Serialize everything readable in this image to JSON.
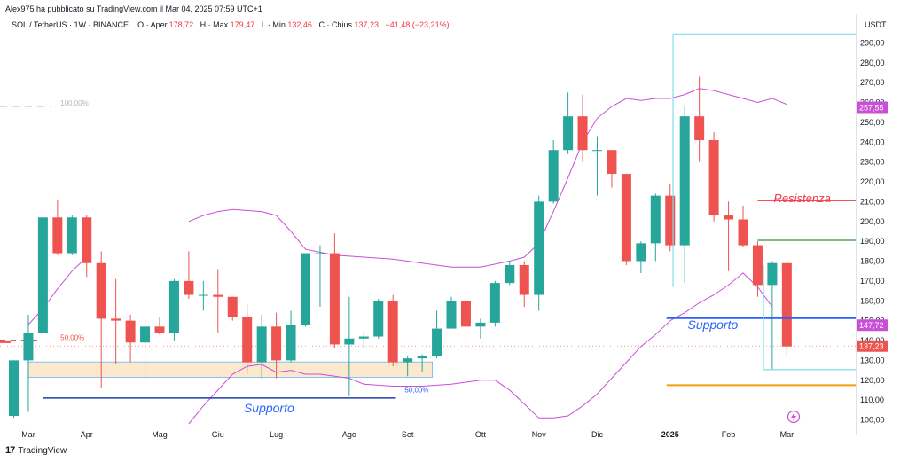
{
  "header": {
    "published": "Alex975 ha pubblicato su TradingView.com il Mar 04, 2025 07:59 UTC+1",
    "symbol": "SOL / TetherUS · 1W · BINANCE",
    "open_label": "O",
    "open_word": "Aper.",
    "open_value": "178,72",
    "high_label": "H",
    "high_word": "Max.",
    "high_value": "179,47",
    "low_label": "L",
    "low_word": "Min.",
    "low_value": "132,46",
    "close_label": "C",
    "close_word": "Chius.",
    "close_value": "137,23",
    "change": "−41,48 (−23,21%)"
  },
  "footer": {
    "brand": "TradingView"
  },
  "colors": {
    "up": "#26a69a",
    "down": "#ef5350",
    "band": "#c94fd6",
    "support": "#2962ff",
    "resistance": "#f23645"
  },
  "chart_data": {
    "type": "candlestick",
    "currency": "USDT",
    "ylim": [
      95,
      300
    ],
    "y_ticks": [
      "100,00",
      "110,00",
      "120,00",
      "130,00",
      "140,00",
      "150,00",
      "160,00",
      "170,00",
      "180,00",
      "190,00",
      "200,00",
      "210,00",
      "220,00",
      "230,00",
      "240,00",
      "250,00",
      "260,00",
      "270,00",
      "280,00",
      "290,00"
    ],
    "x_labels": [
      {
        "i": 1,
        "t": "Mar"
      },
      {
        "i": 5,
        "t": "Apr"
      },
      {
        "i": 10,
        "t": "Mag"
      },
      {
        "i": 14,
        "t": "Giu"
      },
      {
        "i": 18,
        "t": "Lug"
      },
      {
        "i": 23,
        "t": "Ago"
      },
      {
        "i": 27,
        "t": "Set"
      },
      {
        "i": 32,
        "t": "Ott"
      },
      {
        "i": 36,
        "t": "Nov"
      },
      {
        "i": 40,
        "t": "Dic"
      },
      {
        "i": 45,
        "t": "2025"
      },
      {
        "i": 49,
        "t": "Feb"
      },
      {
        "i": 53,
        "t": "Mar"
      }
    ],
    "candles": [
      {
        "o": 102,
        "h": 130,
        "l": 101,
        "c": 130
      },
      {
        "o": 130,
        "h": 153,
        "l": 104,
        "c": 144
      },
      {
        "o": 144,
        "h": 203,
        "l": 143,
        "c": 202
      },
      {
        "o": 202,
        "h": 211,
        "l": 183,
        "c": 184
      },
      {
        "o": 184,
        "h": 203,
        "l": 183,
        "c": 202
      },
      {
        "o": 202,
        "h": 203,
        "l": 172,
        "c": 179
      },
      {
        "o": 179,
        "h": 185,
        "l": 116,
        "c": 151
      },
      {
        "o": 151,
        "h": 171,
        "l": 128,
        "c": 150
      },
      {
        "o": 150,
        "h": 153,
        "l": 129,
        "c": 139
      },
      {
        "o": 139,
        "h": 150,
        "l": 119,
        "c": 147
      },
      {
        "o": 147,
        "h": 152,
        "l": 143,
        "c": 144
      },
      {
        "o": 144,
        "h": 171,
        "l": 140,
        "c": 170
      },
      {
        "o": 170,
        "h": 185,
        "l": 161,
        "c": 163
      },
      {
        "o": 163,
        "h": 170,
        "l": 155,
        "c": 163
      },
      {
        "o": 163,
        "h": 176,
        "l": 144,
        "c": 162
      },
      {
        "o": 162,
        "h": 162,
        "l": 150,
        "c": 152
      },
      {
        "o": 152,
        "h": 158,
        "l": 123,
        "c": 129
      },
      {
        "o": 129,
        "h": 153,
        "l": 121,
        "c": 147
      },
      {
        "o": 147,
        "h": 154,
        "l": 121,
        "c": 130
      },
      {
        "o": 130,
        "h": 155,
        "l": 129,
        "c": 148
      },
      {
        "o": 148,
        "h": 184,
        "l": 147,
        "c": 184
      },
      {
        "o": 184,
        "h": 188,
        "l": 157,
        "c": 184
      },
      {
        "o": 184,
        "h": 194,
        "l": 136,
        "c": 138
      },
      {
        "o": 138,
        "h": 162,
        "l": 112,
        "c": 141
      },
      {
        "o": 141,
        "h": 144,
        "l": 136,
        "c": 142
      },
      {
        "o": 142,
        "h": 161,
        "l": 141,
        "c": 160
      },
      {
        "o": 160,
        "h": 163,
        "l": 127,
        "c": 129
      },
      {
        "o": 129,
        "h": 132,
        "l": 122,
        "c": 131
      },
      {
        "o": 131,
        "h": 133,
        "l": 124,
        "c": 132
      },
      {
        "o": 132,
        "h": 155,
        "l": 131,
        "c": 146
      },
      {
        "o": 146,
        "h": 162,
        "l": 146,
        "c": 160
      },
      {
        "o": 160,
        "h": 161,
        "l": 139,
        "c": 147
      },
      {
        "o": 147,
        "h": 151,
        "l": 141,
        "c": 149
      },
      {
        "o": 149,
        "h": 170,
        "l": 147,
        "c": 169
      },
      {
        "o": 169,
        "h": 180,
        "l": 168,
        "c": 178
      },
      {
        "o": 178,
        "h": 180,
        "l": 157,
        "c": 163
      },
      {
        "o": 163,
        "h": 213,
        "l": 155,
        "c": 210
      },
      {
        "o": 210,
        "h": 241,
        "l": 209,
        "c": 236
      },
      {
        "o": 236,
        "h": 265,
        "l": 234,
        "c": 253
      },
      {
        "o": 253,
        "h": 264,
        "l": 230,
        "c": 236
      },
      {
        "o": 236,
        "h": 243,
        "l": 213,
        "c": 236
      },
      {
        "o": 236,
        "h": 236,
        "l": 217,
        "c": 224
      },
      {
        "o": 224,
        "h": 224,
        "l": 178,
        "c": 180
      },
      {
        "o": 180,
        "h": 190,
        "l": 174,
        "c": 189
      },
      {
        "o": 189,
        "h": 214,
        "l": 180,
        "c": 213
      },
      {
        "o": 213,
        "h": 219,
        "l": 185,
        "c": 188
      },
      {
        "o": 188,
        "h": 258,
        "l": 169,
        "c": 253
      },
      {
        "o": 253,
        "h": 273,
        "l": 230,
        "c": 241
      },
      {
        "o": 241,
        "h": 245,
        "l": 200,
        "c": 203
      },
      {
        "o": 203,
        "h": 210,
        "l": 175,
        "c": 201
      },
      {
        "o": 201,
        "h": 208,
        "l": 187,
        "c": 188
      },
      {
        "o": 188,
        "h": 190,
        "l": 162,
        "c": 168
      },
      {
        "o": 168,
        "h": 180,
        "l": 125,
        "c": 179
      },
      {
        "o": 179,
        "h": 179,
        "l": 132,
        "c": 137
      }
    ],
    "band_upper": [
      {
        "x": 12,
        "y": 200
      },
      {
        "x": 13,
        "y": 203
      },
      {
        "x": 14,
        "y": 205
      },
      {
        "x": 15,
        "y": 206
      },
      {
        "x": 17,
        "y": 205
      },
      {
        "x": 18,
        "y": 203
      },
      {
        "x": 19,
        "y": 195
      },
      {
        "x": 20,
        "y": 186
      },
      {
        "x": 22,
        "y": 183
      },
      {
        "x": 24,
        "y": 182
      },
      {
        "x": 26,
        "y": 181
      },
      {
        "x": 28,
        "y": 179
      },
      {
        "x": 30,
        "y": 177
      },
      {
        "x": 32,
        "y": 177
      },
      {
        "x": 34,
        "y": 180
      },
      {
        "x": 35,
        "y": 182
      },
      {
        "x": 36,
        "y": 189
      },
      {
        "x": 37,
        "y": 205
      },
      {
        "x": 38,
        "y": 222
      },
      {
        "x": 39,
        "y": 240
      },
      {
        "x": 40,
        "y": 252
      },
      {
        "x": 41,
        "y": 258
      },
      {
        "x": 42,
        "y": 262
      },
      {
        "x": 43,
        "y": 261
      },
      {
        "x": 44,
        "y": 262
      },
      {
        "x": 45,
        "y": 262
      },
      {
        "x": 46,
        "y": 264
      },
      {
        "x": 47,
        "y": 267
      },
      {
        "x": 48,
        "y": 266
      },
      {
        "x": 49,
        "y": 264
      },
      {
        "x": 50,
        "y": 262
      },
      {
        "x": 51,
        "y": 260
      },
      {
        "x": 52,
        "y": 262
      },
      {
        "x": 53,
        "y": 259
      }
    ],
    "band_lower": [
      {
        "x": 12,
        "y": 98
      },
      {
        "x": 13,
        "y": 107
      },
      {
        "x": 14,
        "y": 115
      },
      {
        "x": 15,
        "y": 123
      },
      {
        "x": 16,
        "y": 127
      },
      {
        "x": 17,
        "y": 128
      },
      {
        "x": 18,
        "y": 124
      },
      {
        "x": 19,
        "y": 125
      },
      {
        "x": 20,
        "y": 123
      },
      {
        "x": 21,
        "y": 123
      },
      {
        "x": 22,
        "y": 122
      },
      {
        "x": 23,
        "y": 121
      },
      {
        "x": 24,
        "y": 118
      },
      {
        "x": 26,
        "y": 117
      },
      {
        "x": 28,
        "y": 117
      },
      {
        "x": 30,
        "y": 118
      },
      {
        "x": 31,
        "y": 119
      },
      {
        "x": 32,
        "y": 120
      },
      {
        "x": 33,
        "y": 120
      },
      {
        "x": 34,
        "y": 115
      },
      {
        "x": 35,
        "y": 108
      },
      {
        "x": 36,
        "y": 101
      },
      {
        "x": 37,
        "y": 101
      },
      {
        "x": 38,
        "y": 102
      },
      {
        "x": 39,
        "y": 107
      },
      {
        "x": 40,
        "y": 113
      },
      {
        "x": 41,
        "y": 121
      },
      {
        "x": 42,
        "y": 129
      },
      {
        "x": 43,
        "y": 137
      },
      {
        "x": 44,
        "y": 143
      },
      {
        "x": 45,
        "y": 150
      },
      {
        "x": 46,
        "y": 154
      },
      {
        "x": 47,
        "y": 159
      },
      {
        "x": 48,
        "y": 163
      },
      {
        "x": 49,
        "y": 168
      },
      {
        "x": 50,
        "y": 174
      },
      {
        "x": 51,
        "y": 167
      },
      {
        "x": 52,
        "y": 157
      }
    ],
    "band_basis_early": [
      {
        "x": 1,
        "y": 148
      },
      {
        "x": 2,
        "y": 156
      },
      {
        "x": 3,
        "y": 166
      },
      {
        "x": 4,
        "y": 175
      },
      {
        "x": 5,
        "y": 182
      }
    ],
    "support_zone": {
      "x0": 1,
      "x1": 28.7,
      "y0": 121.5,
      "y1": 129.2
    },
    "fib_labels": [
      {
        "x": 3.2,
        "y": 141.5,
        "t": "50,00%"
      },
      {
        "x": 3.2,
        "y": 259.8,
        "t": "100,00%"
      },
      {
        "x": 26.8,
        "y": 115.3,
        "t": "50,00%"
      }
    ],
    "lines": {
      "support_bottom": {
        "x0": 2,
        "x1": 26.2,
        "y": 111,
        "label": "Supporto",
        "label_x": 17.5,
        "label_y": 106
      },
      "support_right": {
        "x0": 45,
        "x1": 56,
        "y": 151.3,
        "label": "Supporto",
        "label_x": 46.2,
        "label_y": 148
      },
      "resistance": {
        "x0": 51,
        "x1": 56,
        "y": 210.5,
        "label": "Resistenza",
        "label_x": 52.1,
        "label_y": 212
      },
      "green_level": {
        "x0": 51,
        "x1": 56,
        "y": 190.5
      },
      "orange_level": {
        "x0": 45,
        "x1": 56,
        "y": 117.5
      },
      "cyan_top": {
        "x0": 45.2,
        "x1": 56,
        "y": 294.5
      },
      "cyan_low": {
        "x0": 51.4,
        "x1": 56,
        "y": 125.3
      },
      "close_dotted": {
        "y": 137.23
      }
    },
    "price_tags": [
      {
        "y": 257.55,
        "t": "257,55",
        "color": "#c94fd6"
      },
      {
        "y": 147.72,
        "t": "147,72",
        "color": "#c94fd6"
      },
      {
        "y": 137.23,
        "t": "137,23",
        "color": "#ef5350"
      }
    ]
  }
}
